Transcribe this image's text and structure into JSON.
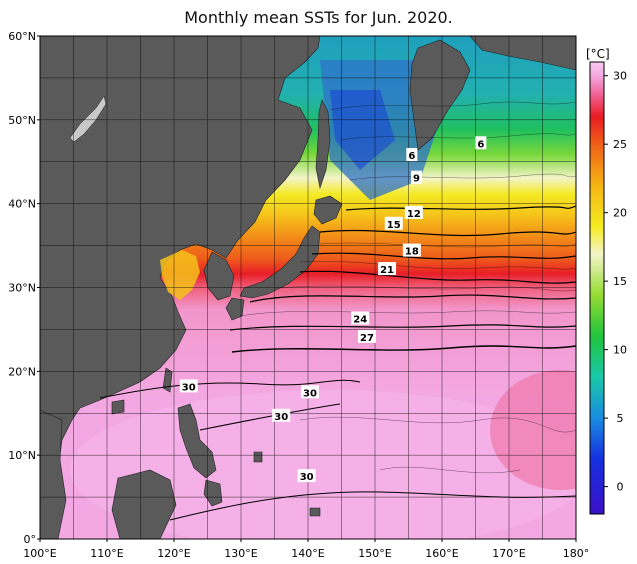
{
  "title": "Monthly mean SSTs for Jun. 2020.",
  "unit_label": "[°C]",
  "lat_labels": [
    {
      "text": "60°N",
      "value": 60
    },
    {
      "text": "50°N",
      "value": 50
    },
    {
      "text": "40°N",
      "value": 40
    },
    {
      "text": "30°N",
      "value": 30
    },
    {
      "text": "20°N",
      "value": 20
    },
    {
      "text": "10°N",
      "value": 10
    },
    {
      "text": "0°",
      "value": 0
    }
  ],
  "lon_labels": [
    {
      "text": "100°E",
      "value": 100
    },
    {
      "text": "110°E",
      "value": 110
    },
    {
      "text": "120°E",
      "value": 120
    },
    {
      "text": "130°E",
      "value": 130
    },
    {
      "text": "140°E",
      "value": 140
    },
    {
      "text": "150°E",
      "value": 150
    },
    {
      "text": "160°E",
      "value": 160
    },
    {
      "text": "170°E",
      "value": 170
    },
    {
      "text": "180°",
      "value": 180
    }
  ],
  "colorbar_ticks": [
    {
      "text": "30",
      "value": 30
    },
    {
      "text": "25",
      "value": 25
    },
    {
      "text": "20",
      "value": 20
    },
    {
      "text": "15",
      "value": 15
    },
    {
      "text": "10",
      "value": 10
    },
    {
      "text": "5",
      "value": 5
    },
    {
      "text": "0",
      "value": 0
    }
  ],
  "colorbar_range": [
    -2,
    31
  ],
  "colorbar_stops": [
    {
      "value": -2,
      "color": "#3a10c8"
    },
    {
      "value": 2,
      "color": "#1530e0"
    },
    {
      "value": 5,
      "color": "#1b8ce0"
    },
    {
      "value": 8,
      "color": "#18c8a8"
    },
    {
      "value": 11,
      "color": "#20c43c"
    },
    {
      "value": 14,
      "color": "#96dc34"
    },
    {
      "value": 17,
      "color": "#f4f4c8"
    },
    {
      "value": 19,
      "color": "#f4ec20"
    },
    {
      "value": 22,
      "color": "#f6b414"
    },
    {
      "value": 25,
      "color": "#f06018"
    },
    {
      "value": 27,
      "color": "#e81c24"
    },
    {
      "value": 28.5,
      "color": "#f05c8c"
    },
    {
      "value": 30,
      "color": "#f4a8e0"
    },
    {
      "value": 31,
      "color": "#f8c8f0"
    }
  ],
  "contour_labels": [
    {
      "text": "6",
      "lon": 155.5,
      "lat": 45.8
    },
    {
      "text": "6",
      "lon": 165.8,
      "lat": 47.2
    },
    {
      "text": "9",
      "lon": 156.2,
      "lat": 43.1
    },
    {
      "text": "12",
      "lon": 155.8,
      "lat": 38.9
    },
    {
      "text": "15",
      "lon": 152.8,
      "lat": 37.6
    },
    {
      "text": "18",
      "lon": 155.5,
      "lat": 34.4
    },
    {
      "text": "21",
      "lon": 151.8,
      "lat": 32.2
    },
    {
      "text": "24",
      "lon": 147.8,
      "lat": 26.3
    },
    {
      "text": "27",
      "lon": 148.8,
      "lat": 24.1
    },
    {
      "text": "30",
      "lon": 122.2,
      "lat": 18.2
    },
    {
      "text": "30",
      "lon": 140.3,
      "lat": 17.5
    },
    {
      "text": "30",
      "lon": 136.0,
      "lat": 14.7
    },
    {
      "text": "30",
      "lon": 139.8,
      "lat": 7.5
    }
  ],
  "colors": {
    "land": "#5a5a5a",
    "ocean_warm": "#f2a4e2",
    "frame": "#000000"
  }
}
